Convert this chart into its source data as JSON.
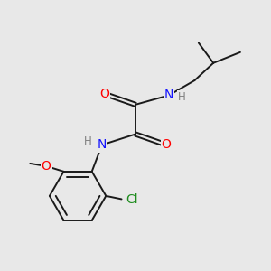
{
  "background_color": "#e8e8e8",
  "bond_color": "#1a1a1a",
  "atom_colors": {
    "N": "#1414ff",
    "O": "#ff0000",
    "Cl": "#1e8c1e",
    "H": "#808080",
    "C": "#1a1a1a"
  },
  "figsize": [
    3.0,
    3.0
  ],
  "dpi": 100,
  "bond_lw": 1.4,
  "font_size": 10.0,
  "font_size_small": 8.5
}
